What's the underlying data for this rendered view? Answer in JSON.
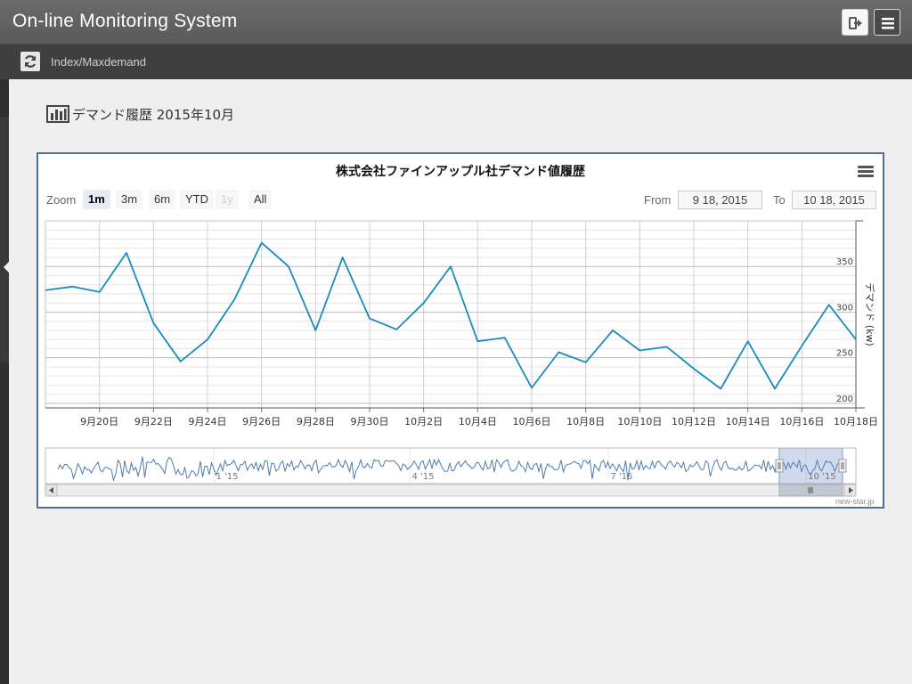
{
  "app": {
    "title": "On-line Monitoring System",
    "breadcrumb": "Index/Maxdemand",
    "icons": {
      "logout": "sign-out-icon",
      "menu": "hamburger-icon",
      "refresh": "refresh-icon"
    }
  },
  "page": {
    "heading": "デマンド履歴 2015年10月",
    "heading_icon": "bar-chart-icon"
  },
  "chart": {
    "title": "株式会社ファインアップル社デマンド値履歴",
    "zoom_label": "Zoom",
    "zoom_buttons": [
      {
        "label": "1m",
        "state": "active"
      },
      {
        "label": "3m",
        "state": "normal"
      },
      {
        "label": "6m",
        "state": "normal"
      },
      {
        "label": "YTD",
        "state": "normal"
      },
      {
        "label": "1y",
        "state": "disabled"
      },
      {
        "label": "All",
        "state": "normal"
      }
    ],
    "from_label": "From",
    "from_value": "9 18, 2015",
    "to_label": "To",
    "to_value": "10 18, 2015",
    "credits": "new-star.jp",
    "line_color": "#1a8bc0",
    "navigator_labels": [
      "1 '15",
      "4 '15",
      "7 '15",
      "10 '15"
    ]
  },
  "chart_data": {
    "type": "line",
    "title": "株式会社ファインアップル社デマンド値履歴",
    "ylabel": "デマンド (kw)",
    "ylim": [
      195,
      400
    ],
    "yticks": [
      200,
      250,
      300,
      350
    ],
    "xlim": [
      "9月18日",
      "10月18日"
    ],
    "xtick_labels": [
      "9月20日",
      "9月22日",
      "9月24日",
      "9月26日",
      "9月28日",
      "9月30日",
      "10月2日",
      "10月4日",
      "10月6日",
      "10月8日",
      "10月10日",
      "10月12日",
      "10月14日",
      "10月16日",
      "10月18日"
    ],
    "grid": true,
    "series": [
      {
        "x": [
          "9月18日",
          "9月19日",
          "9月20日",
          "9月21日",
          "9月22日",
          "9月23日",
          "9月24日",
          "9月25日",
          "9月26日",
          "9月27日",
          "9月28日",
          "9月29日",
          "9月30日",
          "10月1日",
          "10月2日",
          "10月3日",
          "10月4日",
          "10月5日",
          "10月6日",
          "10月7日",
          "10月8日",
          "10月9日",
          "10月10日",
          "10月11日",
          "10月12日",
          "10月13日",
          "10月14日",
          "10月15日",
          "10月16日",
          "10月17日",
          "10月18日"
        ],
        "values": [
          324,
          328,
          322,
          365,
          288,
          246,
          270,
          314,
          376,
          350,
          280,
          360,
          293,
          281,
          310,
          350,
          268,
          272,
          217,
          256,
          245,
          280,
          258,
          262,
          238,
          216,
          268,
          216,
          263,
          308,
          270
        ]
      }
    ]
  }
}
